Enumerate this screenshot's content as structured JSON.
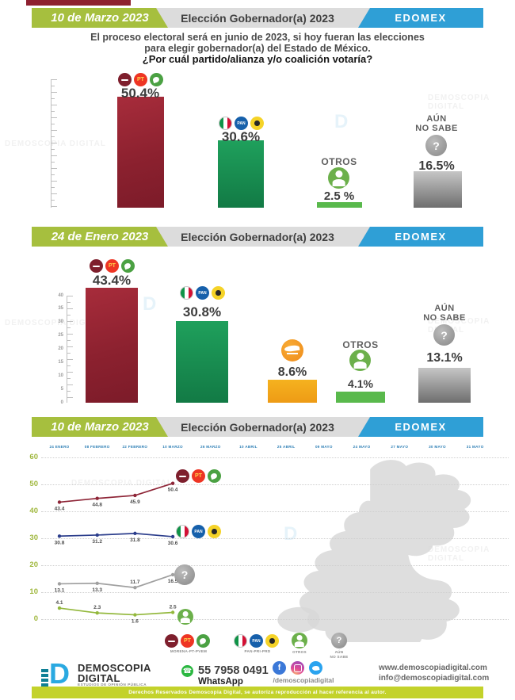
{
  "watermark": "DEMOSCOPIA DIGITAL",
  "colors": {
    "accent_green": "#a6bf3e",
    "accent_blue": "#2f9fd6",
    "coalition_red": "#8e2434",
    "coalition_green": "#169554",
    "mc_orange": "#f0a21d",
    "otros_green": "#6cb04b",
    "nosabe_gray": "#8c8c8c"
  },
  "sections": [
    {
      "tag": "10 de Marzo 2023",
      "title": "Elección Gobernador(a) 2023",
      "region": "EDOMEX"
    },
    {
      "tag": "24 de Enero 2023",
      "title": "Elección Gobernador(a) 2023",
      "region": "EDOMEX"
    },
    {
      "tag": "10 de Marzo 2023",
      "title": "Elección Gobernador(a) 2023",
      "region": "EDOMEX"
    }
  ],
  "question": {
    "line1": "El proceso electoral será en junio de 2023, si hoy fueran las elecciones",
    "line2": "para elegir gobernador(a) del Estado de México.",
    "line3": "¿Por cuál partido/alianza y/o coalición votaría?"
  },
  "labels": {
    "otros": "OTROS",
    "aun": "AÚN",
    "no_sabe": "NO SABE",
    "aun_no_sabe": "AÚN NO SABE"
  },
  "chart_data": [
    {
      "type": "bar",
      "title": "10 de Marzo 2023 — Elección Gobernador(a) 2023 — EDOMEX",
      "categories": [
        "MORENA-PT-PVEM",
        "PAN-PRI-PRD",
        "OTROS",
        "AÚN NO SABE"
      ],
      "values": [
        50.4,
        30.6,
        2.5,
        16.5
      ],
      "value_labels": [
        "50.4%",
        "30.6%",
        "2.5 %",
        "16.5%"
      ],
      "colors": [
        "#8e2434",
        "#169554",
        "#59b94c",
        "#8c8c8c"
      ],
      "ylim": [
        0,
        55
      ]
    },
    {
      "type": "bar",
      "title": "24 de Enero 2023 — Elección Gobernador(a) 2023 — EDOMEX",
      "categories": [
        "MORENA-PT-PVEM",
        "PAN-PRI-PRD",
        "MOVIMIENTO CIUDADANO",
        "OTROS",
        "AÚN NO SABE"
      ],
      "values": [
        43.4,
        30.8,
        8.6,
        4.1,
        13.1
      ],
      "value_labels": [
        "43.4%",
        "30.8%",
        "8.6%",
        "4.1%",
        "13.1%"
      ],
      "colors": [
        "#8e2434",
        "#169554",
        "#f0a21d",
        "#59b94c",
        "#8c8c8c"
      ],
      "ylim": [
        0,
        40
      ],
      "yticks": [
        40,
        35,
        30,
        25,
        20,
        15,
        10,
        5,
        0
      ]
    },
    {
      "type": "line",
      "title": "10 de Marzo 2023 — Elección Gobernador(a) 2023 — EDOMEX",
      "x": [
        "24 ENERO",
        "08 FEBRERO",
        "22 FEBRERO",
        "10 MARZO",
        "26 MARZO",
        "10 ABRIL",
        "25 ABRIL",
        "09 MAYO",
        "24 MAYO",
        "27 MAYO",
        "30 MAYO",
        "31 MAYO"
      ],
      "ylim": [
        0,
        60
      ],
      "yticks": [
        60,
        50,
        40,
        30,
        20,
        10,
        0
      ],
      "legend_position": "bottom",
      "grid": true,
      "series": [
        {
          "name": "MORENA-PT-PVEM",
          "color": "#8e2537",
          "values": [
            43.4,
            44.8,
            45.9,
            50.4
          ],
          "label_pos": [
            "below",
            "below",
            "below",
            "below"
          ]
        },
        {
          "name": "PAN-PRI-PRD",
          "color": "#2c3e8c",
          "values": [
            30.8,
            31.2,
            31.8,
            30.6
          ],
          "label_pos": [
            "below",
            "below",
            "below",
            "below"
          ]
        },
        {
          "name": "AÚN NO SABE",
          "color": "#a0a0a0",
          "values": [
            13.1,
            13.3,
            11.7,
            16.5
          ],
          "label_pos": [
            "below",
            "below",
            "above",
            "below"
          ]
        },
        {
          "name": "OTROS",
          "color": "#93b83c",
          "values": [
            4.1,
            2.3,
            1.6,
            2.5
          ],
          "label_pos": [
            "above",
            "above",
            "below",
            "above"
          ]
        }
      ]
    }
  ],
  "legend": [
    {
      "label": "MORENA-PT-PVEM"
    },
    {
      "label": "PAN-PRI-PRD"
    },
    {
      "label": "OTROS"
    },
    {
      "label": "AÚN"
    },
    {
      "label": "NO SABE"
    }
  ],
  "footer": {
    "brand_line1": "DEMOSCOPIA",
    "brand_line2": "DIGITAL",
    "brand_mark": "D",
    "tagline": "ESTUDIOS DE OPINIÓN PÚBLICA",
    "whatsapp_number": "55 7958 0491",
    "whatsapp_label": "WhatsApp",
    "social_handle": "/demoscopiadigital",
    "website": "www.demoscopiadigital.com",
    "email": "info@demoscopiadigital.com",
    "copyright": "Derechos Reservados Demoscopia Digital, se autoriza reproducción al hacer referencia al autor."
  }
}
